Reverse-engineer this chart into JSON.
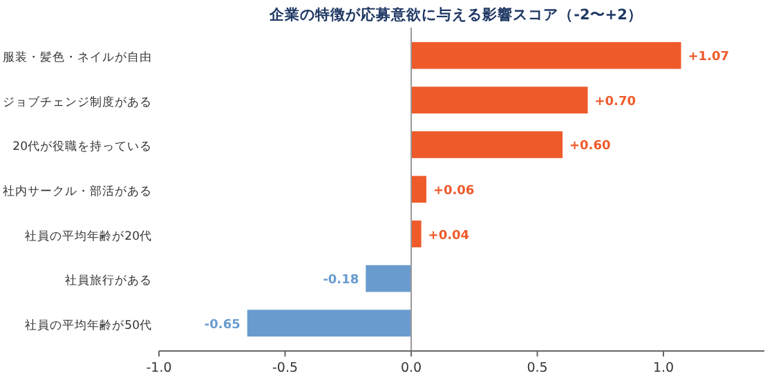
{
  "chart_data": {
    "type": "bar",
    "orientation": "horizontal",
    "title": "企業の特徴が応募意欲に与える影響スコア（-2〜+2）",
    "categories": [
      "服装・髪色・ネイルが自由",
      "ジョブチェンジ制度がある",
      "20代が役職を持っている",
      "社内サークル・部活がある",
      "社員の平均年齢が20代",
      "社員旅行がある",
      "社員の平均年齢が50代"
    ],
    "values": [
      1.07,
      0.7,
      0.6,
      0.06,
      0.04,
      -0.18,
      -0.65
    ],
    "value_labels": [
      "+1.07",
      "+0.70",
      "+0.60",
      "+0.06",
      "+0.04",
      "-0.18",
      "-0.65"
    ],
    "colors": [
      "#ee5a2a",
      "#ee5a2a",
      "#ee5a2a",
      "#ee5a2a",
      "#ee5a2a",
      "#6a9bcf",
      "#6a9bcf"
    ],
    "xlim": [
      -1.0,
      1.4
    ],
    "xticks": [
      {
        "value": -1.0,
        "label": "-1.0"
      },
      {
        "value": -0.5,
        "label": "-0.5"
      },
      {
        "value": 0,
        "label": "0.0"
      },
      {
        "value": 0.5,
        "label": "0.5"
      },
      {
        "value": 1.0,
        "label": "1.0"
      }
    ]
  }
}
